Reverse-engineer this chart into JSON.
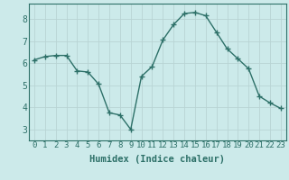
{
  "x": [
    0,
    1,
    2,
    3,
    4,
    5,
    6,
    7,
    8,
    9,
    10,
    11,
    12,
    13,
    14,
    15,
    16,
    17,
    18,
    19,
    20,
    21,
    22,
    23
  ],
  "y": [
    6.15,
    6.3,
    6.35,
    6.35,
    5.65,
    5.6,
    5.05,
    3.75,
    3.65,
    3.0,
    5.4,
    5.85,
    7.05,
    7.75,
    8.25,
    8.3,
    8.15,
    7.4,
    6.65,
    6.2,
    5.75,
    4.5,
    4.2,
    3.95
  ],
  "line_color": "#2d7068",
  "marker": "+",
  "marker_size": 4,
  "bg_color": "#cceaea",
  "plot_bg_color": "#cceaea",
  "grid_color": "#b8d4d4",
  "xlabel": "Humidex (Indice chaleur)",
  "ylim": [
    2.5,
    8.7
  ],
  "yticks": [
    3,
    4,
    5,
    6,
    7,
    8
  ],
  "xticks": [
    0,
    1,
    2,
    3,
    4,
    5,
    6,
    7,
    8,
    9,
    10,
    11,
    12,
    13,
    14,
    15,
    16,
    17,
    18,
    19,
    20,
    21,
    22,
    23
  ],
  "tick_color": "#2d7068",
  "label_fontsize": 6.5,
  "xlabel_fontsize": 7.5
}
